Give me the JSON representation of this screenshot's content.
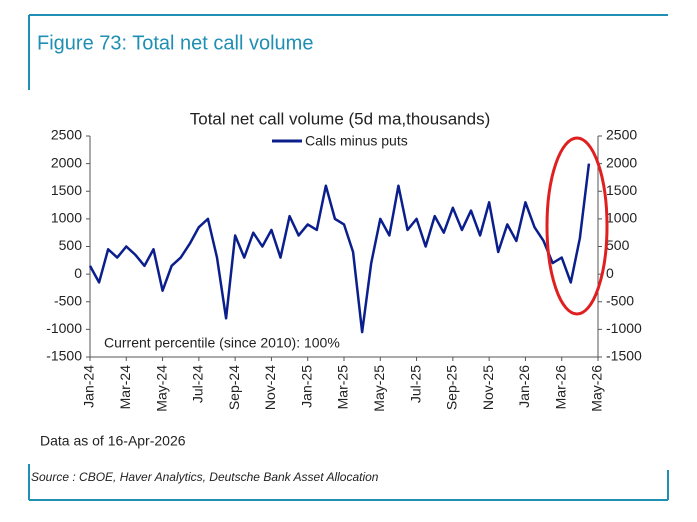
{
  "header": {
    "title": "Figure 73: Total net call volume"
  },
  "chart_data": {
    "type": "line",
    "title": "Total net call volume (5d ma,thousands)",
    "annotations": [
      "Current percentile (since 2010): 100%",
      "Data as of 16-Apr-2026"
    ],
    "xlim": [
      0,
      28
    ],
    "xticks": [
      {
        "value": 0,
        "label": "Jan-24"
      },
      {
        "value": 2,
        "label": "Mar-24"
      },
      {
        "value": 4,
        "label": "May-24"
      },
      {
        "value": 6,
        "label": "Jul-24"
      },
      {
        "value": 8,
        "label": "Sep-24"
      },
      {
        "value": 10,
        "label": "Nov-24"
      },
      {
        "value": 12,
        "label": "Jan-25"
      },
      {
        "value": 14,
        "label": "Mar-25"
      },
      {
        "value": 16,
        "label": "May-25"
      },
      {
        "value": 18,
        "label": "Jul-25"
      },
      {
        "value": 20,
        "label": "Sep-25"
      },
      {
        "value": 22,
        "label": "Nov-25"
      },
      {
        "value": 24,
        "label": "Jan-26"
      },
      {
        "value": 26,
        "label": "Mar-26"
      },
      {
        "value": 28,
        "label": "May-26"
      }
    ],
    "ylim": [
      -1500,
      2500
    ],
    "yticks": [
      2500,
      2000,
      1500,
      1000,
      500,
      0,
      -500,
      -1000,
      -1500
    ],
    "y2lim": [
      -1500,
      2500
    ],
    "y2ticks": [
      2500,
      2000,
      1500,
      1000,
      500,
      0,
      -500,
      -1000,
      -1500
    ],
    "legend": "top",
    "series": [
      {
        "name": "Calls minus puts",
        "color": "#0b1f8c",
        "x": [
          0,
          0.5,
          1,
          1.5,
          2,
          2.5,
          3,
          3.5,
          4,
          4.5,
          5,
          5.5,
          6,
          6.5,
          7,
          7.5,
          8,
          8.5,
          9,
          9.5,
          10,
          10.5,
          11,
          11.5,
          12,
          12.5,
          13,
          13.5,
          14,
          14.5,
          15,
          15.5,
          16,
          16.5,
          17,
          17.5,
          18,
          18.5,
          19,
          19.5,
          20,
          20.5,
          21,
          21.5,
          22,
          22.5,
          23,
          23.5,
          24,
          24.5,
          25,
          25.5,
          26,
          26.5,
          27,
          27.5
        ],
        "values": [
          150,
          -150,
          450,
          300,
          500,
          350,
          150,
          450,
          -300,
          150,
          300,
          550,
          850,
          1000,
          300,
          -800,
          700,
          300,
          750,
          500,
          800,
          300,
          1050,
          700,
          900,
          800,
          1600,
          1000,
          900,
          400,
          -1050,
          200,
          1000,
          700,
          1600,
          800,
          1000,
          500,
          1050,
          750,
          1200,
          800,
          1150,
          700,
          1300,
          400,
          900,
          600,
          1300,
          850,
          600,
          200,
          300,
          -150,
          650,
          2000
        ]
      }
    ]
  },
  "source": "Source : CBOE, Haver Analytics, Deutsche Bank Asset Allocation"
}
